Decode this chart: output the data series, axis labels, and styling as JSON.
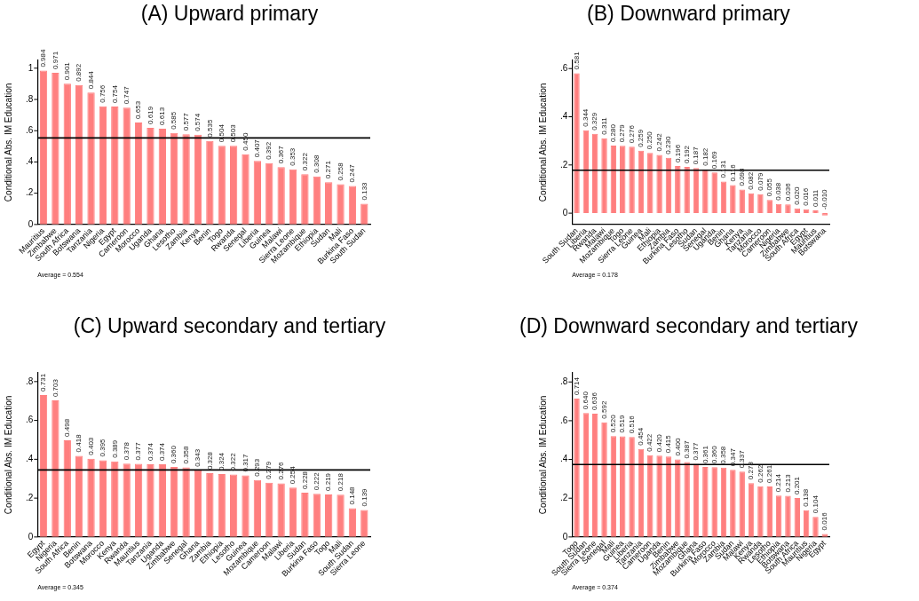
{
  "chart_data": [
    {
      "type": "bar",
      "title": "(A) Upward primary",
      "ylabel": "Conditional Abs. IM Education",
      "color": "#ff7f7f",
      "categories": [
        "Mauritius",
        "Zimbabwe",
        "South Africa",
        "Botswana",
        "Tanzania",
        "Nigeria",
        "Egypt",
        "Cameroon",
        "Morocco",
        "Uganda",
        "Ghana",
        "Lesotho",
        "Zambia",
        "Kenya",
        "Benin",
        "Togo",
        "Rwanda",
        "Senegal",
        "Liberia",
        "Guinea",
        "Malawi",
        "Sierra Leone",
        "Mozambique",
        "Ethiopia",
        "Sudan",
        "Mali",
        "Burkina Faso",
        "South Sudan"
      ],
      "values": [
        0.984,
        0.971,
        0.901,
        0.892,
        0.844,
        0.756,
        0.754,
        0.747,
        0.653,
        0.619,
        0.613,
        0.585,
        0.577,
        0.574,
        0.535,
        0.504,
        0.503,
        0.45,
        0.407,
        0.392,
        0.367,
        0.353,
        0.322,
        0.308,
        0.271,
        0.258,
        0.247,
        0.133
      ],
      "value_labels": [
        "0.984",
        "0.971",
        "0.901",
        "0.892",
        "0.844",
        "0.756",
        "0.754",
        "0.747",
        "0.653",
        "0.619",
        "0.613",
        "0.585",
        "0.577",
        "0.574",
        "0.535",
        "0.504",
        "0.503",
        "0.450",
        "0.407",
        "0.392",
        "0.367",
        "0.353",
        "0.322",
        "0.308",
        "0.271",
        "0.258",
        "0.247",
        "0.133"
      ],
      "ylim": [
        0,
        1.05
      ],
      "yticks": [
        {
          "value": 0,
          "label": "0"
        },
        {
          "value": 0.2,
          "label": ".2"
        },
        {
          "value": 0.4,
          "label": ".4"
        },
        {
          "value": 0.6,
          "label": ".6"
        },
        {
          "value": 0.8,
          "label": ".8"
        },
        {
          "value": 1,
          "label": "1"
        }
      ],
      "ref_lines": [
        {
          "axis": "y",
          "value": 0.554,
          "color": "#000000"
        }
      ],
      "annotations": [
        "Average = 0.554"
      ]
    },
    {
      "type": "bar",
      "title": "(B) Downward primary",
      "ylabel": "Conditional Abs. IM Education",
      "color": "#ff7f7f",
      "categories": [
        "South Sudan",
        "Liberia",
        "Rwanda",
        "Malawi",
        "Mozambique",
        "Togo",
        "Sierra Leone",
        "Guinea",
        "Mali",
        "Ethiopia",
        "Zambia",
        "Burkina Faso",
        "Lesotho",
        "Sudan",
        "Senegal",
        "Uganda",
        "Benin",
        "Ghana",
        "Kenya",
        "Tanzania",
        "Morocco",
        "Cameroon",
        "Nigeria",
        "Zimbabwe",
        "South Africa",
        "Egypt",
        "Mauritius",
        "Botswana"
      ],
      "values": [
        0.581,
        0.344,
        0.329,
        0.311,
        0.28,
        0.279,
        0.276,
        0.259,
        0.25,
        0.242,
        0.23,
        0.196,
        0.192,
        0.187,
        0.182,
        0.169,
        0.131,
        0.116,
        0.098,
        0.082,
        0.079,
        0.055,
        0.038,
        0.036,
        0.02,
        0.016,
        0.011,
        -0.01
      ],
      "value_labels": [
        "0.581",
        "0.344",
        "0.329",
        "0.311",
        "0.280",
        "0.279",
        "0.276",
        "0.259",
        "0.250",
        "0.242",
        "0.230",
        "0.196",
        "0.192",
        "0.187",
        "0.182",
        "0.169",
        "0.131",
        "0.116",
        "0.098",
        "0.082",
        "0.079",
        "0.055",
        "0.038",
        "0.036",
        "0.020",
        "0.016",
        "0.011",
        "-0.010"
      ],
      "ylim": [
        -0.047,
        0.634
      ],
      "yticks": [
        {
          "value": 0,
          "label": "0"
        },
        {
          "value": 0.2,
          "label": ".2"
        },
        {
          "value": 0.4,
          "label": ".4"
        },
        {
          "value": 0.6,
          "label": ".6"
        }
      ],
      "ref_lines": [
        {
          "axis": "y",
          "value": 0.178,
          "color": "#000000"
        }
      ],
      "annotations": [
        "Average = 0.178"
      ]
    },
    {
      "type": "bar",
      "title": "(C) Upward secondary and tertiary",
      "ylabel": "Conditional Abs. IM Education",
      "color": "#ff7f7f",
      "categories": [
        "Egypt",
        "Nigeria",
        "South Africa",
        "Benin",
        "Botswana",
        "Morocco",
        "Kenya",
        "Rwanda",
        "Mauritius",
        "Tanzania",
        "Uganda",
        "Zimbabwe",
        "Senegal",
        "Ghana",
        "Zambia",
        "Ethiopia",
        "Lesotho",
        "Guinea",
        "Mozambique",
        "Cameroon",
        "Malawi",
        "Liberia",
        "Sudan",
        "Burkina Faso",
        "Togo",
        "Mali",
        "South Sudan",
        "Sierra Leone"
      ],
      "values": [
        0.731,
        0.703,
        0.498,
        0.418,
        0.403,
        0.395,
        0.389,
        0.378,
        0.377,
        0.374,
        0.374,
        0.36,
        0.358,
        0.343,
        0.328,
        0.324,
        0.322,
        0.317,
        0.293,
        0.279,
        0.276,
        0.254,
        0.228,
        0.222,
        0.219,
        0.218,
        0.148,
        0.139
      ],
      "value_labels": [
        "0.731",
        "0.703",
        "0.498",
        "0.418",
        "0.403",
        "0.395",
        "0.389",
        "0.378",
        "0.377",
        "0.374",
        "0.374",
        "0.360",
        "0.358",
        "0.343",
        "0.328",
        "0.324",
        "0.322",
        "0.317",
        "0.293",
        "0.279",
        "0.276",
        "0.254",
        "0.228",
        "0.222",
        "0.219",
        "0.218",
        "0.148",
        "0.139"
      ],
      "ylim": [
        0,
        0.845
      ],
      "yticks": [
        {
          "value": 0,
          "label": "0"
        },
        {
          "value": 0.2,
          "label": ".2"
        },
        {
          "value": 0.4,
          "label": ".4"
        },
        {
          "value": 0.6,
          "label": ".6"
        },
        {
          "value": 0.8,
          "label": ".8"
        }
      ],
      "ref_lines": [
        {
          "axis": "y",
          "value": 0.345,
          "color": "#000000"
        }
      ],
      "annotations": [
        "Average = 0.345"
      ]
    },
    {
      "type": "bar",
      "title": "(D) Downward secondary and tertiary",
      "ylabel": "Conditional Abs. IM Education",
      "color": "#ff7f7f",
      "categories": [
        "Togo",
        "South Sudan",
        "Sierra Leone",
        "Senegal",
        "Mali",
        "Guinea",
        "Liberia",
        "Tanzania",
        "Cameroon",
        "Uganda",
        "Benin",
        "Zimbabwe",
        "Mozambique",
        "Ghana",
        "Burkina Faso",
        "Morocco",
        "Zambia",
        "Sudan",
        "Malawi",
        "Kenya",
        "Rwanda",
        "Lesotho",
        "Ethiopia",
        "Botswana",
        "South Africa",
        "Mauritius",
        "Nigeria",
        "Egypt"
      ],
      "values": [
        0.714,
        0.64,
        0.636,
        0.592,
        0.52,
        0.519,
        0.516,
        0.454,
        0.422,
        0.42,
        0.415,
        0.4,
        0.387,
        0.377,
        0.361,
        0.36,
        0.358,
        0.347,
        0.337,
        0.278,
        0.262,
        0.261,
        0.214,
        0.213,
        0.201,
        0.138,
        0.104,
        0.016
      ],
      "value_labels": [
        "0.714",
        "0.640",
        "0.636",
        "0.592",
        "0.520",
        "0.519",
        "0.516",
        "0.454",
        "0.422",
        "0.420",
        "0.415",
        "0.400",
        "0.387",
        "0.377",
        "0.361",
        "0.360",
        "0.358",
        "0.347",
        "0.337",
        "0.278",
        "0.262",
        "0.261",
        "0.214",
        "0.213",
        "0.201",
        "0.138",
        "0.104",
        "0.016"
      ],
      "ylim": [
        0,
        0.847
      ],
      "yticks": [
        {
          "value": 0,
          "label": "0"
        },
        {
          "value": 0.2,
          "label": ".2"
        },
        {
          "value": 0.4,
          "label": ".4"
        },
        {
          "value": 0.6,
          "label": ".6"
        },
        {
          "value": 0.8,
          "label": ".8"
        }
      ],
      "ref_lines": [
        {
          "axis": "y",
          "value": 0.374,
          "color": "#000000"
        }
      ],
      "annotations": [
        "Average = 0.374"
      ]
    }
  ]
}
